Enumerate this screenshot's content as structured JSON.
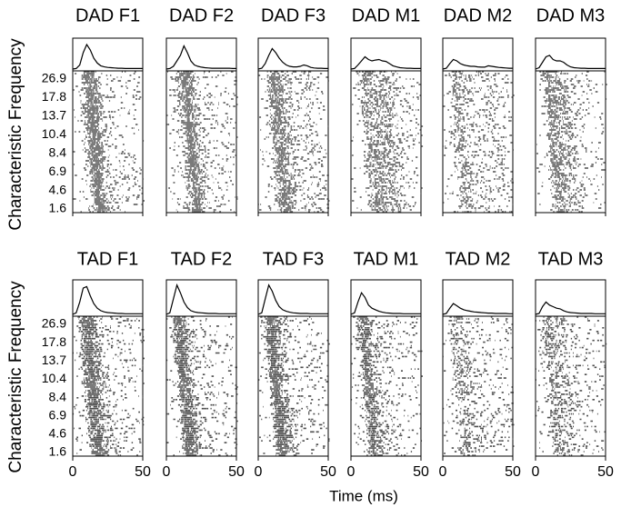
{
  "chart_data": [
    {
      "type": "line",
      "title": "DAD F1",
      "ylabel": "Characteristic Frequency",
      "cf_ticks": [
        26.9,
        17.8,
        13.7,
        10.4,
        8.4,
        6.9,
        4.6,
        1.6
      ],
      "xlim": [
        0,
        50
      ],
      "ylim": [
        0,
        1
      ],
      "x": [
        0,
        2.5,
        5,
        7.5,
        10,
        12.5,
        15,
        17.5,
        20,
        22.5,
        25,
        27.5,
        30,
        32.5,
        35,
        37.5,
        40,
        42.5,
        45,
        47.5,
        50
      ],
      "values": [
        0,
        0.02,
        0.15,
        0.6,
        0.9,
        0.7,
        0.4,
        0.22,
        0.12,
        0.08,
        0.06,
        0.05,
        0.04,
        0.03,
        0.03,
        0.02,
        0.02,
        0.02,
        0.02,
        0.02,
        0.02
      ]
    },
    {
      "type": "line",
      "title": "DAD F2",
      "xlim": [
        0,
        50
      ],
      "ylim": [
        0,
        1
      ],
      "x": [
        0,
        2.5,
        5,
        7.5,
        10,
        12.5,
        15,
        17.5,
        20,
        22.5,
        25,
        27.5,
        30,
        32.5,
        35,
        37.5,
        40,
        42.5,
        45,
        47.5,
        50
      ],
      "values": [
        0,
        0.02,
        0.1,
        0.3,
        0.5,
        0.85,
        0.6,
        0.3,
        0.15,
        0.1,
        0.07,
        0.05,
        0.04,
        0.03,
        0.03,
        0.03,
        0.03,
        0.03,
        0.03,
        0.02,
        0.02
      ]
    },
    {
      "type": "line",
      "title": "DAD F3",
      "xlim": [
        0,
        50
      ],
      "ylim": [
        0,
        1
      ],
      "x": [
        0,
        2.5,
        5,
        7.5,
        10,
        12.5,
        15,
        17.5,
        20,
        22.5,
        25,
        27.5,
        30,
        32.5,
        35,
        37.5,
        40,
        42.5,
        45,
        47.5,
        50
      ],
      "values": [
        0,
        0.03,
        0.2,
        0.5,
        0.75,
        0.6,
        0.4,
        0.25,
        0.15,
        0.1,
        0.08,
        0.08,
        0.1,
        0.15,
        0.12,
        0.06,
        0.04,
        0.03,
        0.03,
        0.02,
        0.02
      ]
    },
    {
      "type": "line",
      "title": "DAD M1",
      "xlim": [
        0,
        50
      ],
      "ylim": [
        0,
        1
      ],
      "x": [
        0,
        2.5,
        5,
        7.5,
        10,
        12.5,
        15,
        17.5,
        20,
        22.5,
        25,
        27.5,
        30,
        32.5,
        35,
        37.5,
        40,
        42.5,
        45,
        47.5,
        50
      ],
      "values": [
        0,
        0.02,
        0.15,
        0.3,
        0.45,
        0.35,
        0.3,
        0.33,
        0.35,
        0.3,
        0.28,
        0.2,
        0.12,
        0.08,
        0.05,
        0.04,
        0.03,
        0.03,
        0.02,
        0.02,
        0.02
      ]
    },
    {
      "type": "line",
      "title": "DAD M2",
      "xlim": [
        0,
        50
      ],
      "ylim": [
        0,
        1
      ],
      "x": [
        0,
        2.5,
        5,
        7.5,
        10,
        12.5,
        15,
        17.5,
        20,
        22.5,
        25,
        27.5,
        30,
        32.5,
        35,
        37.5,
        40,
        42.5,
        45,
        47.5,
        50
      ],
      "values": [
        0,
        0.03,
        0.2,
        0.35,
        0.3,
        0.2,
        0.15,
        0.12,
        0.1,
        0.1,
        0.08,
        0.07,
        0.07,
        0.12,
        0.1,
        0.08,
        0.06,
        0.05,
        0.04,
        0.03,
        0.03
      ]
    },
    {
      "type": "line",
      "title": "DAD M3",
      "xlim": [
        0,
        50
      ],
      "ylim": [
        0,
        1
      ],
      "x": [
        0,
        2.5,
        5,
        7.5,
        10,
        12.5,
        15,
        17.5,
        20,
        22.5,
        25,
        27.5,
        30,
        32.5,
        35,
        37.5,
        40,
        42.5,
        45,
        47.5,
        50
      ],
      "values": [
        0,
        0.05,
        0.25,
        0.45,
        0.5,
        0.35,
        0.3,
        0.3,
        0.25,
        0.15,
        0.08,
        0.05,
        0.04,
        0.03,
        0.03,
        0.02,
        0.02,
        0.02,
        0.02,
        0.02,
        0.02
      ]
    },
    {
      "type": "line",
      "title": "TAD F1",
      "ylabel": "Characteristic Frequency",
      "cf_ticks": [
        26.9,
        17.8,
        13.7,
        10.4,
        8.4,
        6.9,
        4.6,
        1.6
      ],
      "xlim": [
        0,
        50
      ],
      "ylim": [
        0,
        1
      ],
      "xticks": [
        0,
        50
      ],
      "x": [
        0,
        2.5,
        5,
        7.5,
        10,
        12.5,
        15,
        17.5,
        20,
        22.5,
        25,
        27.5,
        30,
        32.5,
        35,
        37.5,
        40,
        42.5,
        45,
        47.5,
        50
      ],
      "values": [
        0,
        0.05,
        0.4,
        0.85,
        0.9,
        0.6,
        0.35,
        0.2,
        0.12,
        0.08,
        0.06,
        0.05,
        0.04,
        0.03,
        0.03,
        0.02,
        0.02,
        0.02,
        0.02,
        0.02,
        0.02
      ]
    },
    {
      "type": "line",
      "title": "TAD F2",
      "xlim": [
        0,
        50
      ],
      "ylim": [
        0,
        1
      ],
      "xticks": [
        0,
        50
      ],
      "x": [
        0,
        2.5,
        5,
        7.5,
        10,
        12.5,
        15,
        17.5,
        20,
        22.5,
        25,
        27.5,
        30,
        32.5,
        35,
        37.5,
        40,
        42.5,
        45,
        47.5,
        50
      ],
      "values": [
        0,
        0.05,
        0.5,
        0.95,
        0.7,
        0.4,
        0.22,
        0.12,
        0.08,
        0.06,
        0.05,
        0.04,
        0.03,
        0.03,
        0.03,
        0.02,
        0.02,
        0.02,
        0.02,
        0.02,
        0.02
      ]
    },
    {
      "type": "line",
      "title": "TAD F3",
      "xlim": [
        0,
        50
      ],
      "ylim": [
        0,
        1
      ],
      "xticks": [
        0,
        50
      ],
      "x": [
        0,
        2.5,
        5,
        7.5,
        10,
        12.5,
        15,
        17.5,
        20,
        22.5,
        25,
        27.5,
        30,
        32.5,
        35,
        37.5,
        40,
        42.5,
        45,
        47.5,
        50
      ],
      "values": [
        0,
        0.05,
        0.5,
        0.95,
        0.75,
        0.45,
        0.25,
        0.15,
        0.1,
        0.07,
        0.05,
        0.04,
        0.03,
        0.03,
        0.03,
        0.02,
        0.02,
        0.02,
        0.02,
        0.02,
        0.02
      ]
    },
    {
      "type": "line",
      "title": "TAD M1",
      "xlabel": "Time (ms)",
      "xlim": [
        0,
        50
      ],
      "ylim": [
        0,
        1
      ],
      "xticks": [
        0,
        50
      ],
      "x": [
        0,
        2.5,
        5,
        7.5,
        10,
        12.5,
        15,
        17.5,
        20,
        22.5,
        25,
        27.5,
        30,
        32.5,
        35,
        37.5,
        40,
        42.5,
        45,
        47.5,
        50
      ],
      "values": [
        0,
        0.05,
        0.4,
        0.7,
        0.55,
        0.3,
        0.2,
        0.15,
        0.1,
        0.07,
        0.05,
        0.04,
        0.03,
        0.03,
        0.03,
        0.02,
        0.02,
        0.02,
        0.02,
        0.02,
        0.02
      ]
    },
    {
      "type": "line",
      "title": "TAD M2",
      "xlim": [
        0,
        50
      ],
      "ylim": [
        0,
        1
      ],
      "xticks": [
        0,
        50
      ],
      "x": [
        0,
        2.5,
        5,
        7.5,
        10,
        12.5,
        15,
        17.5,
        20,
        22.5,
        25,
        27.5,
        30,
        32.5,
        35,
        37.5,
        40,
        42.5,
        45,
        47.5,
        50
      ],
      "values": [
        0,
        0.03,
        0.2,
        0.35,
        0.28,
        0.2,
        0.15,
        0.12,
        0.1,
        0.08,
        0.07,
        0.06,
        0.05,
        0.04,
        0.04,
        0.03,
        0.03,
        0.03,
        0.03,
        0.02,
        0.02
      ]
    },
    {
      "type": "line",
      "title": "TAD M3",
      "xlim": [
        0,
        50
      ],
      "ylim": [
        0,
        1
      ],
      "xticks": [
        0,
        50
      ],
      "x": [
        0,
        2.5,
        5,
        7.5,
        10,
        12.5,
        15,
        17.5,
        20,
        22.5,
        25,
        27.5,
        30,
        32.5,
        35,
        37.5,
        40,
        42.5,
        45,
        47.5,
        50
      ],
      "values": [
        0,
        0.03,
        0.25,
        0.4,
        0.3,
        0.25,
        0.2,
        0.18,
        0.12,
        0.08,
        0.06,
        0.05,
        0.04,
        0.03,
        0.03,
        0.03,
        0.03,
        0.02,
        0.02,
        0.02,
        0.02
      ]
    }
  ]
}
